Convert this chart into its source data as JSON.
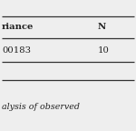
{
  "col_headers": [
    "riance",
    "N"
  ],
  "row_values": [
    "00183",
    "10"
  ],
  "caption": "alysis of observed",
  "bg_color": "#eeeeee",
  "border_color": "#333333",
  "text_color": "#222222",
  "header_fontsize": 7.2,
  "cell_fontsize": 7.2,
  "caption_fontsize": 6.8,
  "fig_width": 1.5,
  "fig_height": 1.44,
  "dpi": 100
}
